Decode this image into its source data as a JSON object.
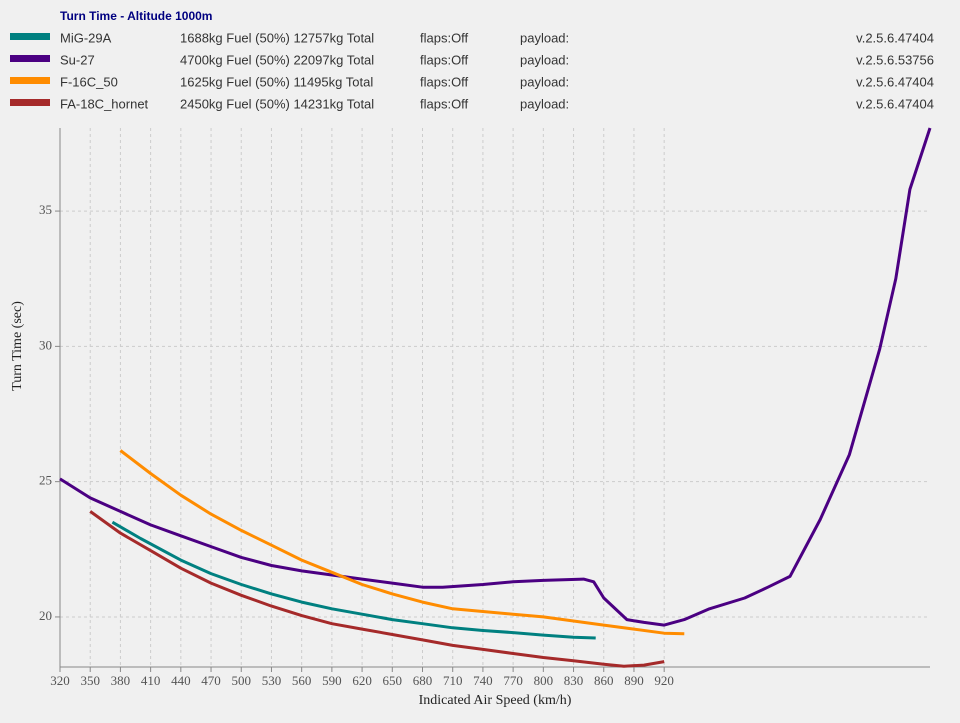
{
  "chart_data": {
    "type": "line",
    "title": "Turn Time - Altitude 1000m",
    "xlabel": "Indicated Air Speed (km/h)",
    "ylabel": "Turn Time (sec)",
    "xlim": [
      320,
      1184
    ],
    "ylim": [
      18.15,
      38.07
    ],
    "xticks": [
      320,
      350,
      380,
      410,
      440,
      470,
      500,
      530,
      560,
      590,
      620,
      650,
      680,
      710,
      740,
      770,
      800,
      830,
      860,
      890,
      920
    ],
    "yticks": [
      20,
      25,
      30,
      35
    ],
    "grid": true,
    "series": [
      {
        "name": "MiG-29A",
        "color": "#008080",
        "description": "1688kg Fuel (50%) 12757kg Total",
        "flaps": "flaps:Off",
        "payload": "payload:",
        "version": "v.2.5.6.47404",
        "x": [
          372,
          400,
          440,
          470,
          500,
          530,
          560,
          590,
          620,
          650,
          680,
          710,
          740,
          770,
          800,
          830,
          852
        ],
        "values": [
          23.5,
          22.9,
          22.1,
          21.6,
          21.2,
          20.85,
          20.55,
          20.3,
          20.1,
          19.9,
          19.75,
          19.6,
          19.5,
          19.42,
          19.33,
          19.25,
          19.22
        ]
      },
      {
        "name": "Su-27",
        "color": "#4b0082",
        "description": "4700kg Fuel (50%) 22097kg Total",
        "flaps": "flaps:Off",
        "payload": "payload:",
        "version": "v.2.5.6.53756",
        "x": [
          320,
          350,
          380,
          410,
          440,
          470,
          500,
          530,
          560,
          590,
          620,
          650,
          680,
          700,
          740,
          770,
          800,
          840,
          850,
          860,
          883,
          900,
          920,
          940,
          965,
          1000,
          1023,
          1045,
          1075,
          1104,
          1134,
          1150,
          1164,
          1184
        ],
        "values": [
          25.1,
          24.4,
          23.9,
          23.4,
          23.0,
          22.6,
          22.2,
          21.9,
          21.7,
          21.55,
          21.4,
          21.25,
          21.1,
          21.1,
          21.2,
          21.3,
          21.35,
          21.4,
          21.3,
          20.7,
          19.9,
          19.8,
          19.7,
          19.9,
          20.3,
          20.7,
          21.1,
          21.5,
          23.6,
          26.0,
          29.9,
          32.5,
          35.8,
          38.07
        ]
      },
      {
        "name": "F-16C_50",
        "color": "#ff8c00",
        "description": "1625kg Fuel (50%) 11495kg Total",
        "flaps": "flaps:Off",
        "payload": "payload:",
        "version": "v.2.5.6.47404",
        "x": [
          380,
          410,
          440,
          470,
          500,
          530,
          560,
          590,
          620,
          650,
          680,
          710,
          740,
          770,
          800,
          830,
          860,
          890,
          920,
          940
        ],
        "values": [
          26.15,
          25.3,
          24.5,
          23.8,
          23.2,
          22.65,
          22.1,
          21.65,
          21.2,
          20.85,
          20.55,
          20.3,
          20.2,
          20.1,
          20.0,
          19.85,
          19.7,
          19.55,
          19.4,
          19.38
        ]
      },
      {
        "name": "FA-18C_hornet",
        "color": "#a52a2a",
        "description": "2450kg Fuel (50%) 14231kg Total",
        "flaps": "flaps:Off",
        "payload": "payload:",
        "version": "v.2.5.6.47404",
        "x": [
          350,
          380,
          410,
          440,
          470,
          500,
          530,
          560,
          590,
          620,
          650,
          680,
          710,
          740,
          770,
          800,
          830,
          860,
          880,
          900,
          920
        ],
        "values": [
          23.9,
          23.1,
          22.45,
          21.8,
          21.25,
          20.8,
          20.4,
          20.05,
          19.75,
          19.55,
          19.35,
          19.15,
          18.95,
          18.8,
          18.65,
          18.5,
          18.38,
          18.25,
          18.18,
          18.22,
          18.35
        ]
      }
    ]
  }
}
